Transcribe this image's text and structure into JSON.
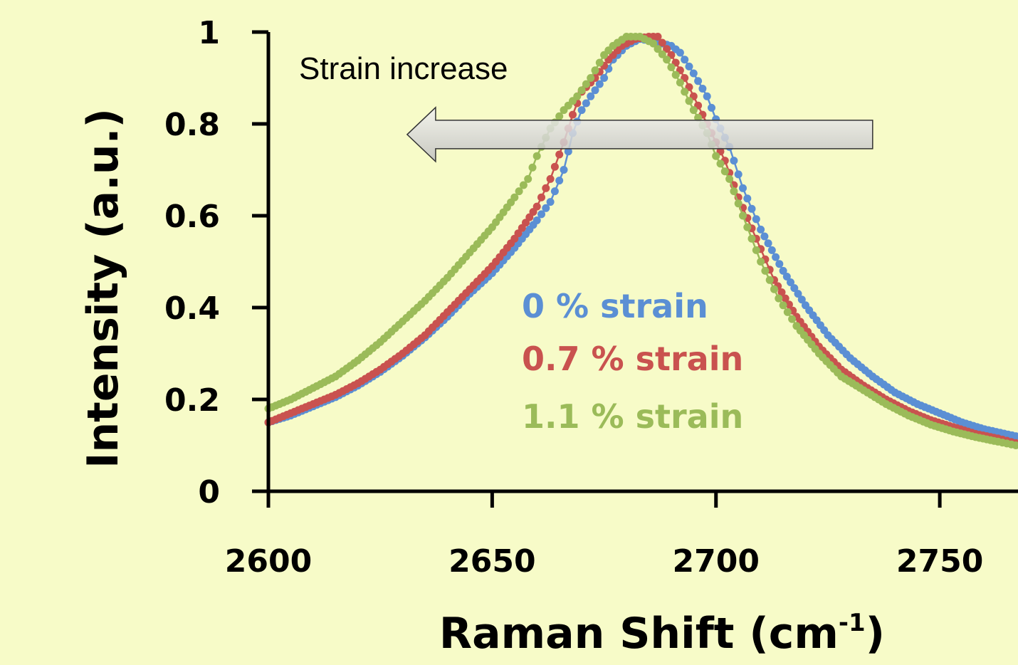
{
  "chart_data": {
    "type": "line",
    "title": "",
    "xlabel": "Raman Shift (cm",
    "xlabel_sup": "-1",
    "xlabel_close": ")",
    "ylabel": "Intensity (a.u.)",
    "xlim": [
      2600,
      2767
    ],
    "ylim": [
      0,
      1
    ],
    "x_ticks": [
      2600,
      2650,
      2700,
      2750
    ],
    "x_tick_labels": [
      "2600",
      "2650",
      "2700",
      "2750"
    ],
    "y_ticks": [
      0,
      0.2,
      0.4,
      0.6,
      0.8,
      1
    ],
    "y_tick_labels": [
      "0",
      "0.2",
      "0.4",
      "0.6",
      "0.8",
      "1"
    ],
    "grid": false,
    "legend_placement": "center",
    "annotation": {
      "text": "Strain increase",
      "arrow_from": [
        2735,
        0.78
      ],
      "arrow_to": [
        2631,
        0.78
      ]
    },
    "series": [
      {
        "name": "0 % strain",
        "color": "#5b8fd4",
        "points": [
          [
            2600,
            0.15
          ],
          [
            2605,
            0.165
          ],
          [
            2610,
            0.185
          ],
          [
            2615,
            0.205
          ],
          [
            2620,
            0.23
          ],
          [
            2625,
            0.26
          ],
          [
            2630,
            0.295
          ],
          [
            2635,
            0.335
          ],
          [
            2640,
            0.38
          ],
          [
            2645,
            0.43
          ],
          [
            2650,
            0.475
          ],
          [
            2655,
            0.53
          ],
          [
            2660,
            0.59
          ],
          [
            2663,
            0.63
          ],
          [
            2666,
            0.7
          ],
          [
            2668,
            0.78
          ],
          [
            2670,
            0.83
          ],
          [
            2672,
            0.86
          ],
          [
            2675,
            0.9
          ],
          [
            2677,
            0.94
          ],
          [
            2680,
            0.97
          ],
          [
            2683,
            0.985
          ],
          [
            2686,
            0.98
          ],
          [
            2688,
            0.975
          ],
          [
            2690,
            0.97
          ],
          [
            2692,
            0.955
          ],
          [
            2695,
            0.91
          ],
          [
            2698,
            0.86
          ],
          [
            2700,
            0.81
          ],
          [
            2703,
            0.75
          ],
          [
            2706,
            0.66
          ],
          [
            2710,
            0.57
          ],
          [
            2715,
            0.48
          ],
          [
            2720,
            0.405
          ],
          [
            2725,
            0.34
          ],
          [
            2730,
            0.29
          ],
          [
            2735,
            0.25
          ],
          [
            2740,
            0.215
          ],
          [
            2745,
            0.19
          ],
          [
            2750,
            0.17
          ],
          [
            2755,
            0.15
          ],
          [
            2760,
            0.135
          ],
          [
            2767,
            0.12
          ]
        ]
      },
      {
        "name": "0.7 % strain",
        "color": "#c9524f",
        "points": [
          [
            2600,
            0.15
          ],
          [
            2605,
            0.17
          ],
          [
            2610,
            0.19
          ],
          [
            2615,
            0.21
          ],
          [
            2620,
            0.235
          ],
          [
            2625,
            0.265
          ],
          [
            2630,
            0.3
          ],
          [
            2635,
            0.34
          ],
          [
            2640,
            0.39
          ],
          [
            2645,
            0.44
          ],
          [
            2650,
            0.49
          ],
          [
            2655,
            0.55
          ],
          [
            2660,
            0.62
          ],
          [
            2663,
            0.68
          ],
          [
            2666,
            0.76
          ],
          [
            2668,
            0.82
          ],
          [
            2670,
            0.87
          ],
          [
            2673,
            0.9
          ],
          [
            2676,
            0.94
          ],
          [
            2679,
            0.97
          ],
          [
            2682,
            0.985
          ],
          [
            2685,
            0.99
          ],
          [
            2687,
            0.99
          ],
          [
            2690,
            0.95
          ],
          [
            2693,
            0.9
          ],
          [
            2696,
            0.84
          ],
          [
            2699,
            0.78
          ],
          [
            2702,
            0.72
          ],
          [
            2705,
            0.64
          ],
          [
            2709,
            0.55
          ],
          [
            2713,
            0.46
          ],
          [
            2718,
            0.38
          ],
          [
            2723,
            0.315
          ],
          [
            2728,
            0.265
          ],
          [
            2733,
            0.23
          ],
          [
            2738,
            0.2
          ],
          [
            2743,
            0.175
          ],
          [
            2748,
            0.155
          ],
          [
            2753,
            0.14
          ],
          [
            2758,
            0.125
          ],
          [
            2763,
            0.115
          ],
          [
            2767,
            0.105
          ]
        ]
      },
      {
        "name": "1.1 % strain",
        "color": "#9bbb59",
        "points": [
          [
            2600,
            0.18
          ],
          [
            2605,
            0.2
          ],
          [
            2610,
            0.225
          ],
          [
            2615,
            0.25
          ],
          [
            2620,
            0.285
          ],
          [
            2625,
            0.325
          ],
          [
            2630,
            0.37
          ],
          [
            2635,
            0.415
          ],
          [
            2640,
            0.465
          ],
          [
            2645,
            0.52
          ],
          [
            2650,
            0.575
          ],
          [
            2655,
            0.64
          ],
          [
            2658,
            0.68
          ],
          [
            2660,
            0.73
          ],
          [
            2663,
            0.79
          ],
          [
            2666,
            0.83
          ],
          [
            2669,
            0.86
          ],
          [
            2672,
            0.9
          ],
          [
            2675,
            0.95
          ],
          [
            2677,
            0.97
          ],
          [
            2680,
            0.99
          ],
          [
            2683,
            0.99
          ],
          [
            2686,
            0.975
          ],
          [
            2689,
            0.94
          ],
          [
            2692,
            0.89
          ],
          [
            2695,
            0.83
          ],
          [
            2698,
            0.78
          ],
          [
            2700,
            0.73
          ],
          [
            2703,
            0.68
          ],
          [
            2706,
            0.6
          ],
          [
            2710,
            0.5
          ],
          [
            2714,
            0.42
          ],
          [
            2718,
            0.36
          ],
          [
            2723,
            0.3
          ],
          [
            2728,
            0.25
          ],
          [
            2733,
            0.22
          ],
          [
            2738,
            0.19
          ],
          [
            2743,
            0.165
          ],
          [
            2748,
            0.145
          ],
          [
            2753,
            0.13
          ],
          [
            2758,
            0.118
          ],
          [
            2763,
            0.108
          ],
          [
            2767,
            0.1
          ]
        ]
      }
    ]
  }
}
